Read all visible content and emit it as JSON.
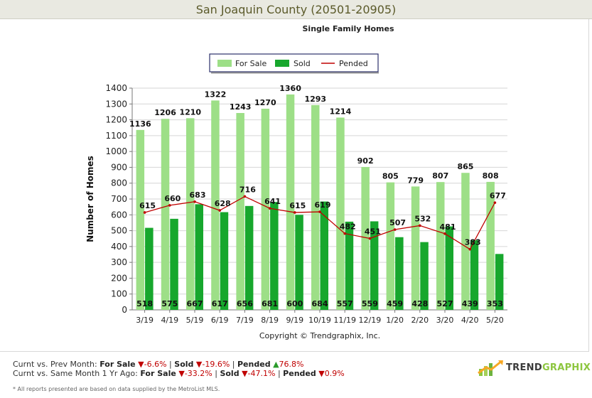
{
  "header": {
    "title": "San Joaquin County (20501-20905)"
  },
  "chart_data": {
    "type": "bar",
    "subtitle": "Single Family Homes",
    "ylabel": "Number of Homes",
    "xlabel": "",
    "ylim": [
      0,
      1400
    ],
    "yticks": [
      0,
      100,
      200,
      300,
      400,
      500,
      600,
      700,
      800,
      900,
      1000,
      1100,
      1200,
      1300,
      1400
    ],
    "grid": true,
    "legend_position": "top-center",
    "categories": [
      "3/19",
      "4/19",
      "5/19",
      "6/19",
      "7/19",
      "8/19",
      "9/19",
      "10/19",
      "11/19",
      "12/19",
      "1/20",
      "2/20",
      "3/20",
      "4/20",
      "5/20"
    ],
    "series": [
      {
        "name": "For Sale",
        "kind": "bar",
        "color": "#9ddf87",
        "values": [
          1136,
          1206,
          1210,
          1322,
          1243,
          1270,
          1360,
          1293,
          1214,
          902,
          805,
          779,
          807,
          865,
          808
        ]
      },
      {
        "name": "Sold",
        "kind": "bar",
        "color": "#17a72d",
        "values": [
          518,
          575,
          667,
          617,
          656,
          681,
          600,
          684,
          557,
          559,
          459,
          428,
          527,
          439,
          353
        ]
      },
      {
        "name": "Pended",
        "kind": "line",
        "color": "#c00000",
        "values": [
          615,
          660,
          683,
          628,
          716,
          641,
          615,
          619,
          482,
          451,
          507,
          532,
          481,
          383,
          677
        ]
      }
    ],
    "copyright": "Copyright © Trendgraphix, Inc."
  },
  "footer": {
    "row1": {
      "prefix": "Curnt vs. Prev Month:",
      "forsale_label": "For Sale",
      "forsale_arrow": "▼",
      "forsale_value": "-6.6%",
      "sep1": "|",
      "sold_label": "Sold",
      "sold_arrow": "▼",
      "sold_value": "-19.6%",
      "sep2": "|",
      "pended_label": "Pended",
      "pended_arrow": "▲",
      "pended_value": "76.8%"
    },
    "row2": {
      "prefix": "Curnt vs. Same Month 1 Yr Ago:",
      "forsale_label": "For Sale",
      "forsale_arrow": "▼",
      "forsale_value": "-33.2%",
      "sep1": "|",
      "sold_label": "Sold",
      "sold_arrow": "▼",
      "sold_value": "-47.1%",
      "sep2": "|",
      "pended_label": "Pended",
      "pended_arrow": "▼",
      "pended_value": "0.9%"
    },
    "note": "* All reports presented are based on data supplied by the MetroList MLS.",
    "logo": {
      "part1": "TREND",
      "part2": "GRAPHIX"
    }
  }
}
